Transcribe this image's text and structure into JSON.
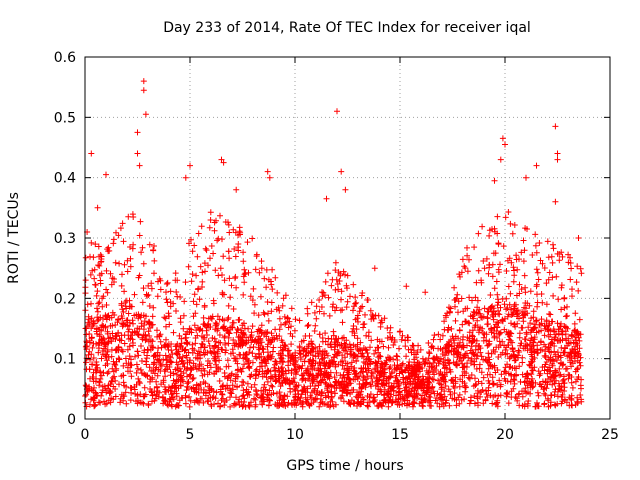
{
  "chart_data": {
    "type": "scatter",
    "title": "Day 233 of 2014, Rate Of TEC Index for receiver iqal",
    "xlabel": "GPS time / hours",
    "ylabel": "ROTI / TECUs",
    "xlim": [
      0,
      25
    ],
    "ylim": [
      0,
      0.6
    ],
    "x_ticks": [
      0,
      5,
      10,
      15,
      20,
      25
    ],
    "y_ticks": [
      0,
      0.1,
      0.2,
      0.3,
      0.4,
      0.5,
      0.6
    ],
    "x_tick_labels": [
      "0",
      "5",
      "10",
      "15",
      "20",
      "25"
    ],
    "y_tick_labels": [
      "0",
      "0.1",
      "0.2",
      "0.3",
      "0.4",
      "0.5",
      "0.6"
    ],
    "grid": true,
    "marker": "+",
    "color": "#ff0000",
    "x_range_of_data": [
      0,
      23.7
    ],
    "envelope": {
      "description": "Dense cloud of ROTI samples; typical upper envelope by hour",
      "hours": [
        0,
        1,
        2,
        3,
        4,
        5,
        6,
        7,
        8,
        9,
        10,
        11,
        12,
        13,
        14,
        15,
        16,
        17,
        18,
        19,
        20,
        21,
        22,
        23,
        23.7
      ],
      "typical_max": [
        0.3,
        0.28,
        0.35,
        0.32,
        0.22,
        0.3,
        0.35,
        0.33,
        0.3,
        0.25,
        0.18,
        0.2,
        0.28,
        0.22,
        0.18,
        0.15,
        0.12,
        0.15,
        0.28,
        0.33,
        0.35,
        0.32,
        0.3,
        0.28,
        0.25
      ],
      "typical_median": [
        0.1,
        0.1,
        0.12,
        0.1,
        0.07,
        0.09,
        0.1,
        0.1,
        0.09,
        0.08,
        0.06,
        0.07,
        0.08,
        0.07,
        0.06,
        0.05,
        0.05,
        0.06,
        0.1,
        0.11,
        0.12,
        0.11,
        0.1,
        0.09,
        0.08
      ]
    },
    "notable_points": [
      {
        "x": 2.8,
        "y": 0.56
      },
      {
        "x": 2.8,
        "y": 0.545
      },
      {
        "x": 2.9,
        "y": 0.505
      },
      {
        "x": 2.5,
        "y": 0.475
      },
      {
        "x": 2.5,
        "y": 0.44
      },
      {
        "x": 2.6,
        "y": 0.42
      },
      {
        "x": 0.3,
        "y": 0.44
      },
      {
        "x": 1.0,
        "y": 0.405
      },
      {
        "x": 5.0,
        "y": 0.42
      },
      {
        "x": 4.8,
        "y": 0.4
      },
      {
        "x": 6.5,
        "y": 0.43
      },
      {
        "x": 6.6,
        "y": 0.425
      },
      {
        "x": 7.2,
        "y": 0.38
      },
      {
        "x": 8.7,
        "y": 0.41
      },
      {
        "x": 8.8,
        "y": 0.4
      },
      {
        "x": 11.5,
        "y": 0.365
      },
      {
        "x": 12.0,
        "y": 0.51
      },
      {
        "x": 12.2,
        "y": 0.41
      },
      {
        "x": 12.4,
        "y": 0.38
      },
      {
        "x": 19.9,
        "y": 0.465
      },
      {
        "x": 20.0,
        "y": 0.455
      },
      {
        "x": 19.8,
        "y": 0.43
      },
      {
        "x": 19.5,
        "y": 0.395
      },
      {
        "x": 21.0,
        "y": 0.4
      },
      {
        "x": 21.5,
        "y": 0.42
      },
      {
        "x": 22.4,
        "y": 0.485
      },
      {
        "x": 22.5,
        "y": 0.44
      },
      {
        "x": 22.5,
        "y": 0.43
      },
      {
        "x": 22.4,
        "y": 0.36
      },
      {
        "x": 0.1,
        "y": 0.31
      },
      {
        "x": 0.6,
        "y": 0.35
      },
      {
        "x": 13.8,
        "y": 0.25
      },
      {
        "x": 15.3,
        "y": 0.22
      },
      {
        "x": 16.2,
        "y": 0.21
      },
      {
        "x": 23.5,
        "y": 0.3
      }
    ]
  }
}
